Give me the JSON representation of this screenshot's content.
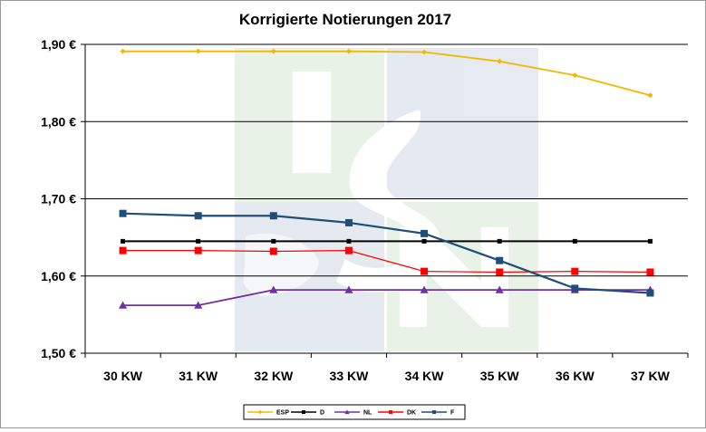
{
  "chart_data": {
    "type": "line",
    "title": "Korrigierte Notierungen 2017",
    "categories": [
      "30 KW",
      "31 KW",
      "32 KW",
      "33 KW",
      "34 KW",
      "35 KW",
      "36 KW",
      "37 KW"
    ],
    "ylim": [
      1.5,
      1.9
    ],
    "yticks": [
      1.5,
      1.6,
      1.7,
      1.8,
      1.9
    ],
    "ytick_labels": [
      "1,50 €",
      "1,60 €",
      "1,70 €",
      "1,80 €",
      "1,90 €"
    ],
    "grid": true,
    "legend_position": "bottom",
    "watermark": "ISN",
    "series": [
      {
        "name": "ESP",
        "color": "#F2B800",
        "marker": "diamond",
        "values": [
          1.891,
          1.891,
          1.891,
          1.891,
          1.89,
          1.878,
          1.86,
          1.834
        ]
      },
      {
        "name": "D",
        "color": "#000000",
        "marker": "square",
        "values": [
          1.645,
          1.645,
          1.645,
          1.645,
          1.645,
          1.645,
          1.645,
          1.645
        ]
      },
      {
        "name": "NL",
        "color": "#7030A0",
        "marker": "triangle",
        "values": [
          1.562,
          1.562,
          1.582,
          1.582,
          1.582,
          1.582,
          1.582,
          1.582
        ]
      },
      {
        "name": "DK",
        "color": "#FF0000",
        "marker": "square",
        "values": [
          1.633,
          1.633,
          1.632,
          1.633,
          1.606,
          1.605,
          1.606,
          1.605
        ]
      },
      {
        "name": "F",
        "color": "#1F4E79",
        "marker": "square",
        "values": [
          1.681,
          1.678,
          1.678,
          1.669,
          1.655,
          1.62,
          1.584,
          1.578
        ]
      }
    ]
  }
}
